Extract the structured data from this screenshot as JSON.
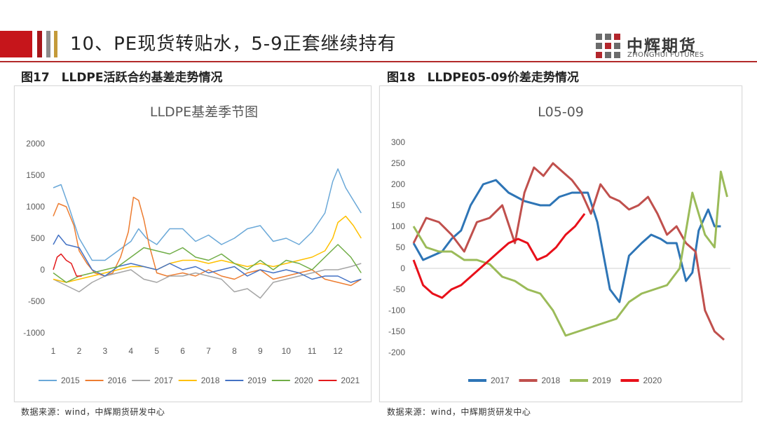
{
  "header": {
    "title": "10、PE现货转贴水，5-9正套继续持有",
    "logo_cn": "中辉期货",
    "logo_en": "ZHONGHUI FUTURES"
  },
  "figures": [
    {
      "caption": "图17　LLDPE活跃合约基差走势情况",
      "source": "数据来源：wind，中辉期货研发中心"
    },
    {
      "caption": "图18　LLDPE05-09价差走势情况",
      "source": "数据来源：wind，中辉期货研发中心"
    }
  ],
  "chart_data": [
    {
      "type": "line",
      "title": "LLDPE基差季节图",
      "xlabel": "",
      "ylabel": "",
      "x_ticks": [
        "1",
        "2",
        "3",
        "4",
        "5",
        "6",
        "7",
        "8",
        "9",
        "10",
        "11",
        "12"
      ],
      "xlim": [
        1,
        13
      ],
      "ylim": [
        -1000,
        2000
      ],
      "y_ticks": [
        2000,
        1500,
        1000,
        500,
        0,
        -500,
        -1000
      ],
      "legend_position": "bottom",
      "grid": false,
      "series": [
        {
          "name": "2015",
          "color": "#6aa8d8",
          "x": [
            1,
            1.3,
            1.6,
            2,
            2.5,
            3,
            3.5,
            4,
            4.3,
            4.6,
            5,
            5.5,
            6,
            6.5,
            7,
            7.5,
            8,
            8.5,
            9,
            9.5,
            10,
            10.5,
            11,
            11.5,
            11.8,
            12,
            12.3,
            12.6,
            12.9
          ],
          "y": [
            1300,
            1350,
            1000,
            500,
            150,
            150,
            300,
            450,
            650,
            500,
            400,
            650,
            650,
            450,
            550,
            400,
            500,
            650,
            700,
            450,
            500,
            400,
            600,
            900,
            1400,
            1600,
            1300,
            1100,
            900
          ]
        },
        {
          "name": "2016",
          "color": "#ed7d31",
          "x": [
            1,
            1.2,
            1.5,
            1.8,
            2,
            2.3,
            2.6,
            3,
            3.3,
            3.6,
            3.9,
            4.1,
            4.3,
            4.5,
            4.7,
            5,
            5.4,
            6,
            6.5,
            7,
            7.5,
            8,
            8.5,
            9,
            9.5,
            10,
            10.5,
            11,
            11.5,
            12,
            12.5,
            12.9
          ],
          "y": [
            850,
            1050,
            1000,
            700,
            300,
            100,
            -50,
            -100,
            -50,
            200,
            600,
            1150,
            1100,
            800,
            400,
            -50,
            -100,
            -50,
            -100,
            0,
            -100,
            -150,
            -50,
            0,
            -150,
            -100,
            -50,
            0,
            -150,
            -200,
            -250,
            -150
          ]
        },
        {
          "name": "2017",
          "color": "#a5a5a5",
          "x": [
            1,
            1.5,
            2,
            2.5,
            3,
            3.5,
            4,
            4.5,
            5,
            5.5,
            6,
            6.5,
            7,
            7.5,
            8,
            8.5,
            9,
            9.5,
            10,
            10.5,
            11,
            11.5,
            12,
            12.5,
            12.9
          ],
          "y": [
            -150,
            -250,
            -350,
            -200,
            -100,
            -50,
            0,
            -150,
            -200,
            -100,
            -100,
            -50,
            -100,
            -150,
            -350,
            -300,
            -450,
            -200,
            -150,
            -100,
            -50,
            0,
            0,
            50,
            100
          ]
        },
        {
          "name": "2018",
          "color": "#ffc000",
          "x": [
            1,
            1.5,
            2,
            2.5,
            3,
            3.5,
            4,
            4.5,
            5,
            5.5,
            6,
            6.5,
            7,
            7.5,
            8,
            8.5,
            9,
            9.5,
            10,
            10.5,
            11,
            11.5,
            11.8,
            12,
            12.3,
            12.6,
            12.9
          ],
          "y": [
            -150,
            -200,
            -150,
            -100,
            -50,
            0,
            50,
            50,
            0,
            100,
            150,
            150,
            100,
            150,
            100,
            50,
            100,
            50,
            100,
            150,
            200,
            300,
            500,
            750,
            850,
            700,
            500
          ]
        },
        {
          "name": "2019",
          "color": "#4472c4",
          "x": [
            1,
            1.2,
            1.5,
            2,
            2.5,
            3,
            3.5,
            4,
            4.5,
            5,
            5.5,
            6,
            6.5,
            7,
            7.5,
            8,
            8.5,
            9,
            9.5,
            10,
            10.5,
            11,
            11.5,
            12,
            12.5,
            12.9
          ],
          "y": [
            400,
            550,
            400,
            350,
            0,
            -100,
            50,
            100,
            50,
            0,
            100,
            0,
            50,
            -50,
            0,
            50,
            -100,
            0,
            -50,
            0,
            -50,
            -150,
            -100,
            -100,
            -200,
            -150
          ]
        },
        {
          "name": "2020",
          "color": "#70ad47",
          "x": [
            1,
            1.5,
            2,
            2.5,
            3,
            3.5,
            4,
            4.5,
            5,
            5.5,
            6,
            6.5,
            7,
            7.5,
            8,
            8.5,
            9,
            9.5,
            10,
            10.5,
            11,
            11.5,
            12,
            12.5,
            12.9
          ],
          "y": [
            -50,
            -200,
            -100,
            -50,
            0,
            50,
            200,
            350,
            300,
            250,
            350,
            200,
            150,
            250,
            100,
            0,
            150,
            0,
            150,
            100,
            0,
            200,
            400,
            200,
            -50
          ]
        },
        {
          "name": "2021",
          "color": "#e31a1c",
          "x": [
            1,
            1.15,
            1.3,
            1.5,
            1.7,
            1.9,
            2.1
          ],
          "y": [
            0,
            200,
            250,
            150,
            100,
            -100,
            -100
          ]
        }
      ]
    },
    {
      "type": "line",
      "title": "L05-09",
      "xlabel": "",
      "ylabel": "",
      "xlim": [
        0,
        100
      ],
      "ylim": [
        -200,
        300
      ],
      "y_ticks": [
        300,
        250,
        200,
        150,
        100,
        50,
        0,
        -50,
        -100,
        -150,
        -200
      ],
      "legend_position": "bottom",
      "grid": false,
      "series": [
        {
          "name": "2017",
          "color": "#2e75b6",
          "x": [
            0,
            3,
            6,
            9,
            12,
            15,
            18,
            22,
            26,
            30,
            35,
            40,
            43,
            46,
            50,
            55,
            58,
            62,
            65,
            68,
            72,
            75,
            78,
            80,
            83,
            86,
            88,
            90,
            93,
            95,
            97
          ],
          "y": [
            60,
            20,
            30,
            40,
            70,
            90,
            150,
            200,
            210,
            180,
            160,
            150,
            150,
            170,
            180,
            180,
            110,
            -50,
            -80,
            30,
            60,
            80,
            70,
            60,
            60,
            -30,
            -10,
            90,
            140,
            100,
            100
          ]
        },
        {
          "name": "2018",
          "color": "#c0504d",
          "x": [
            0,
            4,
            8,
            12,
            16,
            20,
            24,
            28,
            32,
            35,
            38,
            41,
            44,
            47,
            50,
            53,
            56,
            59,
            62,
            65,
            68,
            71,
            74,
            77,
            80,
            83,
            86,
            89,
            92,
            95,
            98
          ],
          "y": [
            60,
            120,
            110,
            80,
            40,
            110,
            120,
            150,
            60,
            180,
            240,
            220,
            250,
            230,
            210,
            180,
            130,
            200,
            170,
            160,
            140,
            150,
            170,
            130,
            80,
            100,
            60,
            40,
            -100,
            -150,
            -170
          ]
        },
        {
          "name": "2019",
          "color": "#9bbb59",
          "x": [
            0,
            4,
            8,
            12,
            16,
            20,
            24,
            28,
            32,
            36,
            40,
            44,
            48,
            52,
            56,
            60,
            64,
            68,
            72,
            76,
            80,
            84,
            88,
            92,
            95,
            97,
            99
          ],
          "y": [
            100,
            50,
            40,
            40,
            20,
            20,
            10,
            -20,
            -30,
            -50,
            -60,
            -100,
            -160,
            -150,
            -140,
            -130,
            -120,
            -80,
            -60,
            -50,
            -40,
            0,
            180,
            80,
            50,
            230,
            170
          ]
        },
        {
          "name": "2020",
          "color": "#e8101a",
          "x": [
            0,
            3,
            6,
            9,
            12,
            15,
            18,
            21,
            24,
            27,
            30,
            33,
            36,
            39,
            42,
            45,
            48,
            51,
            54
          ],
          "y": [
            20,
            -40,
            -60,
            -70,
            -50,
            -40,
            -20,
            0,
            20,
            40,
            60,
            70,
            60,
            20,
            30,
            50,
            80,
            100,
            130
          ]
        }
      ]
    }
  ]
}
